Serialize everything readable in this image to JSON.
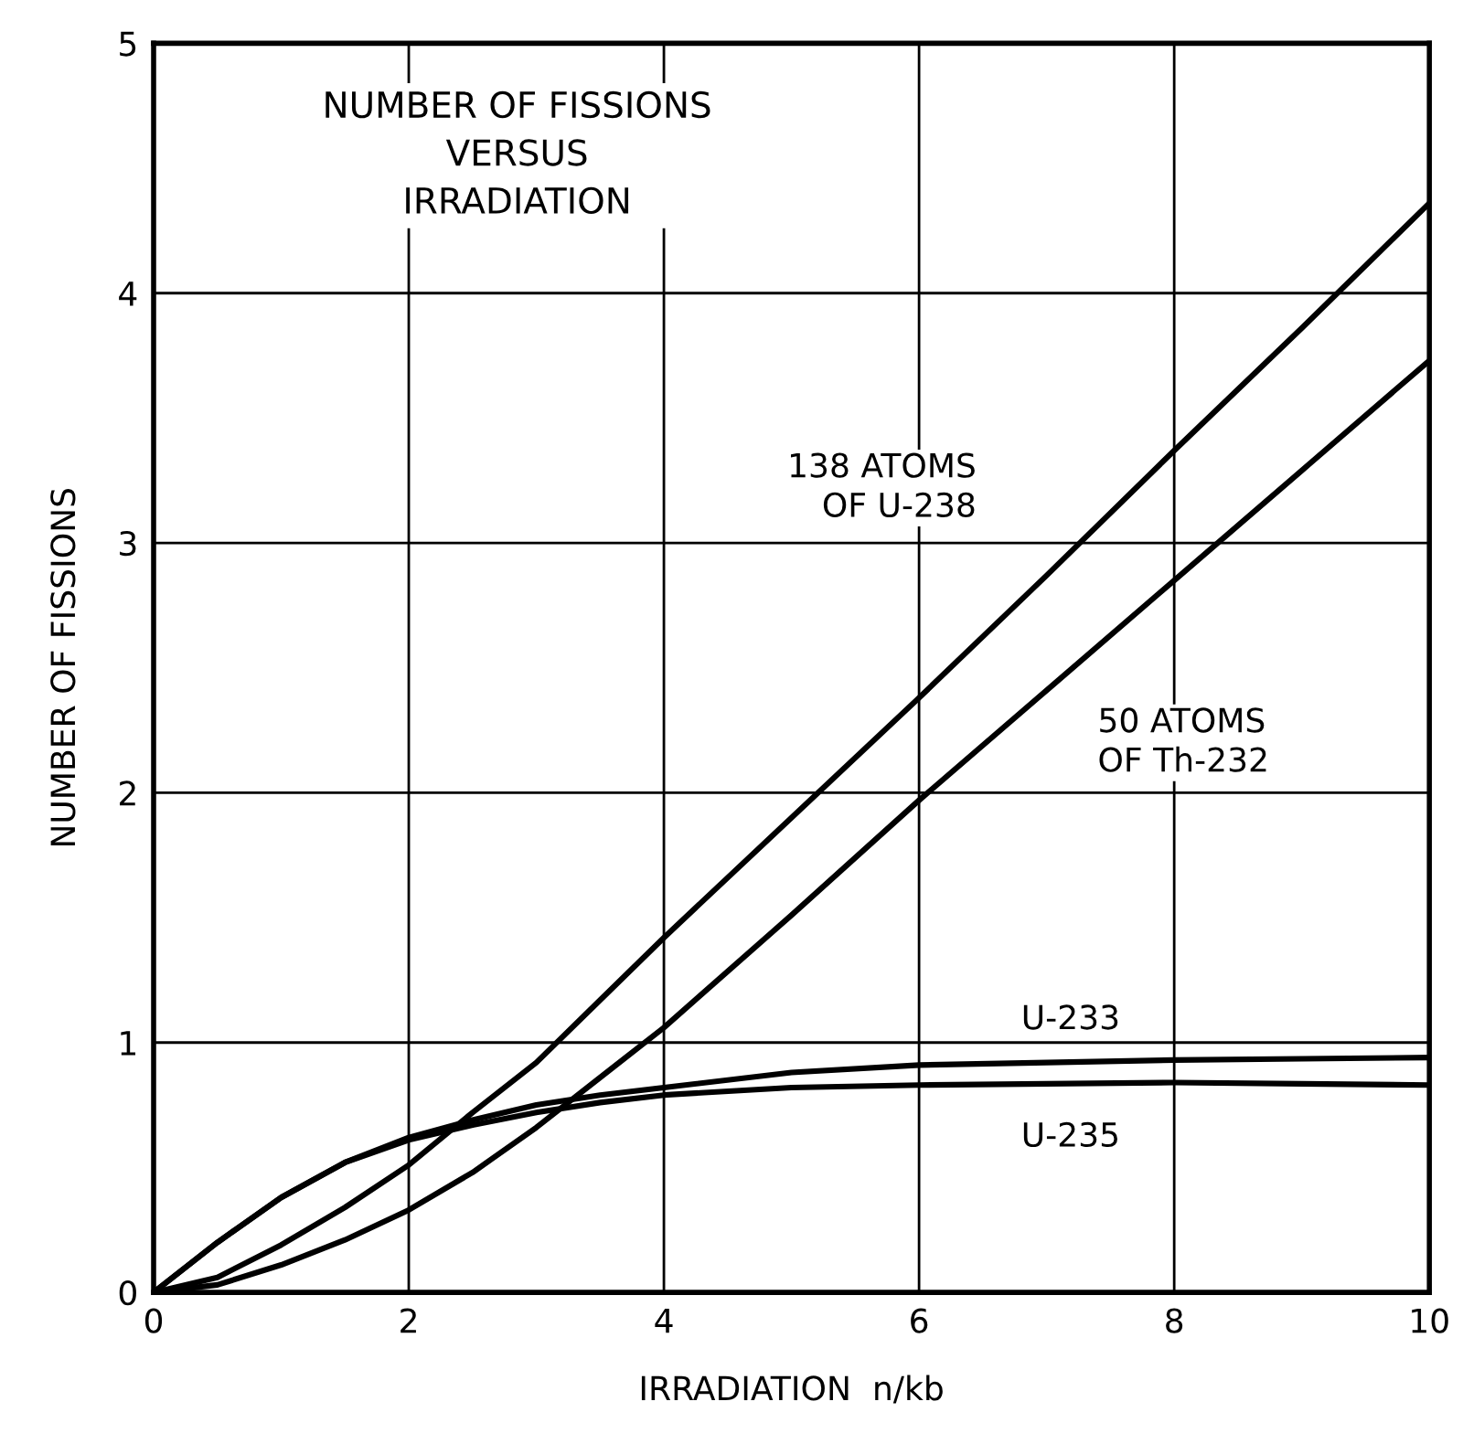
{
  "chart_data": {
    "type": "line",
    "title": "NUMBER OF FISSIONS\nVERSUS\nIRRADIATION",
    "xlabel": "IRRADIATION  n/kb",
    "ylabel": "NUMBER OF FISSIONS",
    "xlim": [
      0,
      10
    ],
    "ylim": [
      0,
      5
    ],
    "xticks": [
      0,
      2,
      4,
      6,
      8,
      10
    ],
    "yticks": [
      0,
      1,
      2,
      3,
      4,
      5
    ],
    "grid": true,
    "legend": false,
    "line_style": "solid",
    "marker": "none",
    "series": [
      {
        "name": "138 ATOMS\nOF U-238",
        "color": "#000000",
        "x": [
          0,
          0.5,
          1,
          1.5,
          2,
          2.5,
          3,
          3.5,
          4,
          5,
          6,
          7,
          8,
          9,
          10
        ],
        "values": [
          0,
          0.06,
          0.19,
          0.34,
          0.51,
          0.72,
          0.92,
          1.17,
          1.42,
          1.9,
          2.38,
          2.87,
          3.37,
          3.86,
          4.36
        ]
      },
      {
        "name": "50 ATOMS\nOF Th-232",
        "color": "#000000",
        "x": [
          0,
          0.5,
          1,
          1.5,
          2,
          2.5,
          3,
          3.5,
          4,
          5,
          6,
          7,
          8,
          9,
          10
        ],
        "values": [
          0,
          0.03,
          0.11,
          0.21,
          0.33,
          0.48,
          0.66,
          0.86,
          1.06,
          1.51,
          1.97,
          2.41,
          2.85,
          3.29,
          3.73
        ]
      },
      {
        "name": "U-233",
        "color": "#000000",
        "x": [
          0,
          0.5,
          1,
          1.5,
          2,
          2.5,
          3,
          3.5,
          4,
          5,
          6,
          7,
          8,
          9,
          10
        ],
        "values": [
          0,
          0.2,
          0.38,
          0.52,
          0.62,
          0.69,
          0.75,
          0.79,
          0.82,
          0.88,
          0.91,
          0.92,
          0.93,
          0.935,
          0.94
        ]
      },
      {
        "name": "U-235",
        "color": "#000000",
        "x": [
          0,
          0.5,
          1,
          1.5,
          2,
          2.5,
          3,
          3.5,
          4,
          5,
          6,
          7,
          8,
          9,
          10
        ],
        "values": [
          0,
          0.2,
          0.38,
          0.52,
          0.61,
          0.67,
          0.72,
          0.76,
          0.79,
          0.82,
          0.83,
          0.835,
          0.84,
          0.835,
          0.83
        ]
      }
    ]
  }
}
